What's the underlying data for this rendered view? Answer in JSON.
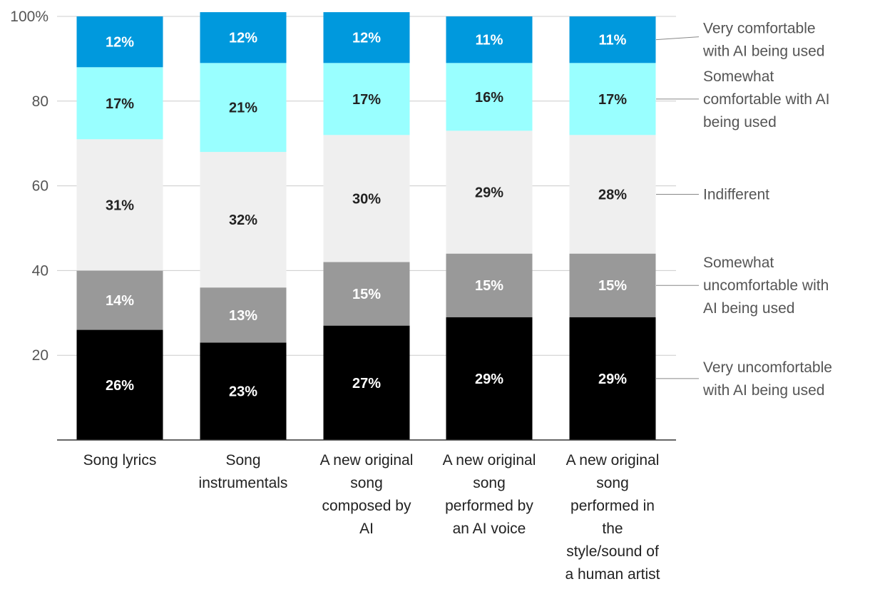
{
  "chart_data": {
    "type": "bar",
    "stacked": true,
    "title": "",
    "xlabel": "",
    "ylabel": "",
    "ylim": [
      0,
      100
    ],
    "yticks": [
      {
        "value": 20,
        "label": "20"
      },
      {
        "value": 40,
        "label": "40"
      },
      {
        "value": 60,
        "label": "60"
      },
      {
        "value": 80,
        "label": "80"
      },
      {
        "value": 100,
        "label": "100%"
      }
    ],
    "grid": true,
    "legend_position": "right",
    "categories": [
      [
        "Song lyrics"
      ],
      [
        "Song",
        "instrumentals"
      ],
      [
        "A new original",
        "song",
        "composed by",
        "AI"
      ],
      [
        "A new original",
        "song",
        "performed by",
        "an AI voice"
      ],
      [
        "A new original",
        "song",
        "performed in",
        "the",
        "style/sound of",
        "a human artist"
      ]
    ],
    "series": [
      {
        "name": [
          "Very uncomfortable",
          "with AI being used"
        ],
        "color": "#000000",
        "text_color": "#ffffff",
        "values": [
          26,
          23,
          27,
          29,
          29
        ],
        "data_labels": [
          "26%",
          "23%",
          "27%",
          "29%",
          "29%"
        ]
      },
      {
        "name": [
          "Somewhat",
          "uncomfortable with",
          "AI being used"
        ],
        "color": "#999999",
        "text_color": "#ffffff",
        "values": [
          14,
          13,
          15,
          15,
          15
        ],
        "data_labels": [
          "14%",
          "13%",
          "15%",
          "15%",
          "15%"
        ]
      },
      {
        "name": [
          "Indifferent"
        ],
        "color": "#efefef",
        "text_color": "#222222",
        "values": [
          31,
          32,
          30,
          29,
          28
        ],
        "data_labels": [
          "31%",
          "32%",
          "30%",
          "29%",
          "28%"
        ]
      },
      {
        "name": [
          "Somewhat",
          "comfortable with AI",
          "being used"
        ],
        "color": "#99ffff",
        "text_color": "#222222",
        "values": [
          17,
          21,
          17,
          16,
          17
        ],
        "data_labels": [
          "17%",
          "21%",
          "17%",
          "16%",
          "17%"
        ]
      },
      {
        "name": [
          "Very comfortable",
          "with AI being used"
        ],
        "color": "#0099dd",
        "text_color": "#ffffff",
        "values": [
          12,
          12,
          12,
          11,
          11
        ],
        "data_labels": [
          "12%",
          "12%",
          "12%",
          "11%",
          "11%"
        ]
      }
    ]
  }
}
